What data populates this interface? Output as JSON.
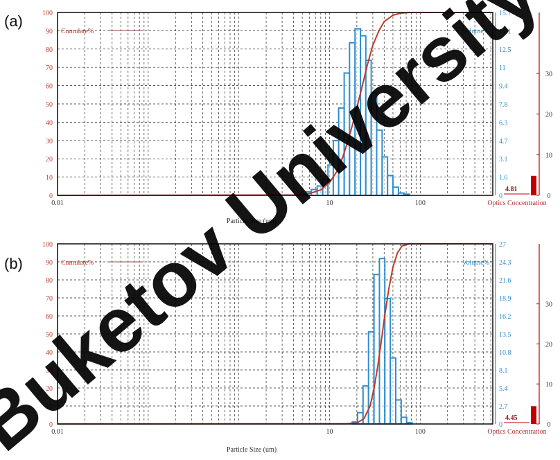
{
  "panels": [
    {
      "letter": "(a)",
      "left_label": "Cumulate%",
      "right_label": "Volume%",
      "xlabel": "Particle Size (um)",
      "x_ticks": [
        "0.01",
        "10",
        "100"
      ],
      "left_ticks": [
        "0",
        "10",
        "20",
        "30",
        "40",
        "50",
        "60",
        "70",
        "80",
        "90",
        "100"
      ],
      "right_ticks": [
        "0",
        "1.6",
        "3.1",
        "4.7",
        "6.3",
        "7.8",
        "9.4",
        "11",
        "12.5",
        "14.1",
        "15.7"
      ],
      "obscuration": {
        "ticks": [
          "0",
          "10",
          "20",
          "30"
        ],
        "value_label": "4.81",
        "value": 4.81,
        "label": "Optics Concentration"
      }
    },
    {
      "letter": "(b)",
      "left_label": "Cumulate%",
      "right_label": "Volume%",
      "xlabel": "Particle Size (um)",
      "x_ticks": [
        "0.01",
        "10",
        "100"
      ],
      "left_ticks": [
        "0",
        "10",
        "20",
        "30",
        "40",
        "50",
        "60",
        "70",
        "80",
        "90",
        "100"
      ],
      "right_ticks": [
        "0",
        "2.7",
        "5.4",
        "8.1",
        "10.8",
        "13.5",
        "16.2",
        "18.9",
        "21.6",
        "24.3",
        "27"
      ],
      "obscuration": {
        "ticks": [
          "0",
          "10",
          "20",
          "30"
        ],
        "value_label": "4.45",
        "value": 4.45,
        "label": "Optics Concentration"
      }
    }
  ],
  "chart_data": [
    {
      "type": "bar",
      "panel": "(a)",
      "xlabel": "Particle Size (um)",
      "ylabel": "Cumulate%",
      "y2label": "Volume%",
      "ylim": [
        0,
        100
      ],
      "y2lim": [
        0,
        15.7
      ],
      "x_scale": "log",
      "grid": true,
      "bins": [
        [
          5.5,
          6.3,
          0.3
        ],
        [
          6.3,
          7.3,
          0.5
        ],
        [
          7.3,
          8.4,
          0.8
        ],
        [
          8.4,
          9.6,
          1.4
        ],
        [
          9.6,
          11.0,
          2.6
        ],
        [
          11.0,
          12.6,
          4.7
        ],
        [
          12.6,
          14.5,
          7.5
        ],
        [
          14.5,
          16.6,
          10.5
        ],
        [
          16.6,
          19.1,
          13.1
        ],
        [
          19.1,
          21.9,
          14.3
        ],
        [
          21.9,
          25.1,
          13.7
        ],
        [
          25.1,
          28.8,
          11.6
        ],
        [
          28.8,
          33.1,
          8.8
        ],
        [
          33.1,
          38.0,
          5.6
        ],
        [
          38.0,
          43.6,
          3.3
        ],
        [
          43.6,
          50.0,
          1.7
        ],
        [
          50.0,
          57.5,
          0.7
        ],
        [
          57.5,
          66.1,
          0.2
        ],
        [
          66.1,
          75.9,
          0.1
        ]
      ],
      "cumulative": [
        [
          0.01,
          0
        ],
        [
          4,
          0.2
        ],
        [
          6,
          1
        ],
        [
          8,
          3
        ],
        [
          10,
          7
        ],
        [
          12,
          13
        ],
        [
          14,
          21
        ],
        [
          16,
          30
        ],
        [
          18,
          39
        ],
        [
          20,
          48
        ],
        [
          23,
          60
        ],
        [
          26,
          71
        ],
        [
          30,
          82
        ],
        [
          35,
          90
        ],
        [
          40,
          95
        ],
        [
          50,
          98.5
        ],
        [
          60,
          99.6
        ],
        [
          75,
          100
        ],
        [
          100,
          100
        ],
        [
          700,
          100
        ]
      ]
    },
    {
      "type": "bar",
      "panel": "(b)",
      "xlabel": "Particle Size (um)",
      "ylabel": "Cumulate%",
      "y2label": "Volume%",
      "ylim": [
        0,
        100
      ],
      "y2lim": [
        0,
        27
      ],
      "x_scale": "log",
      "grid": true,
      "bins": [
        [
          17.8,
          20.4,
          0.3
        ],
        [
          20.4,
          23.4,
          1.7
        ],
        [
          23.4,
          26.9,
          5.7
        ],
        [
          26.9,
          30.9,
          13.8
        ],
        [
          30.9,
          35.5,
          22.4
        ],
        [
          35.5,
          40.7,
          24.8
        ],
        [
          40.7,
          46.8,
          18.8
        ],
        [
          46.8,
          53.7,
          9.9
        ],
        [
          53.7,
          61.7,
          3.6
        ],
        [
          61.7,
          70.8,
          1.0
        ],
        [
          70.8,
          81.3,
          0.2
        ]
      ],
      "cumulative": [
        [
          0.01,
          0
        ],
        [
          15,
          0.1
        ],
        [
          20,
          0.5
        ],
        [
          24,
          3
        ],
        [
          28,
          10
        ],
        [
          31,
          20
        ],
        [
          34,
          32
        ],
        [
          37,
          45
        ],
        [
          40,
          58
        ],
        [
          45,
          75
        ],
        [
          50,
          87
        ],
        [
          56,
          95
        ],
        [
          63,
          98.8
        ],
        [
          75,
          100
        ],
        [
          100,
          100
        ],
        [
          700,
          100
        ]
      ]
    }
  ],
  "watermark": {
    "text": "Buketov University",
    "color": "#000000"
  },
  "colors": {
    "cumulative_line": "#c0392b",
    "left_axis": "#c0392b",
    "volume_axis": "#2e8fd0",
    "bars": "#2e8fd0",
    "obscuration_bar": "#c00000",
    "grid": "#222222",
    "frame": "#1a1a1a"
  }
}
